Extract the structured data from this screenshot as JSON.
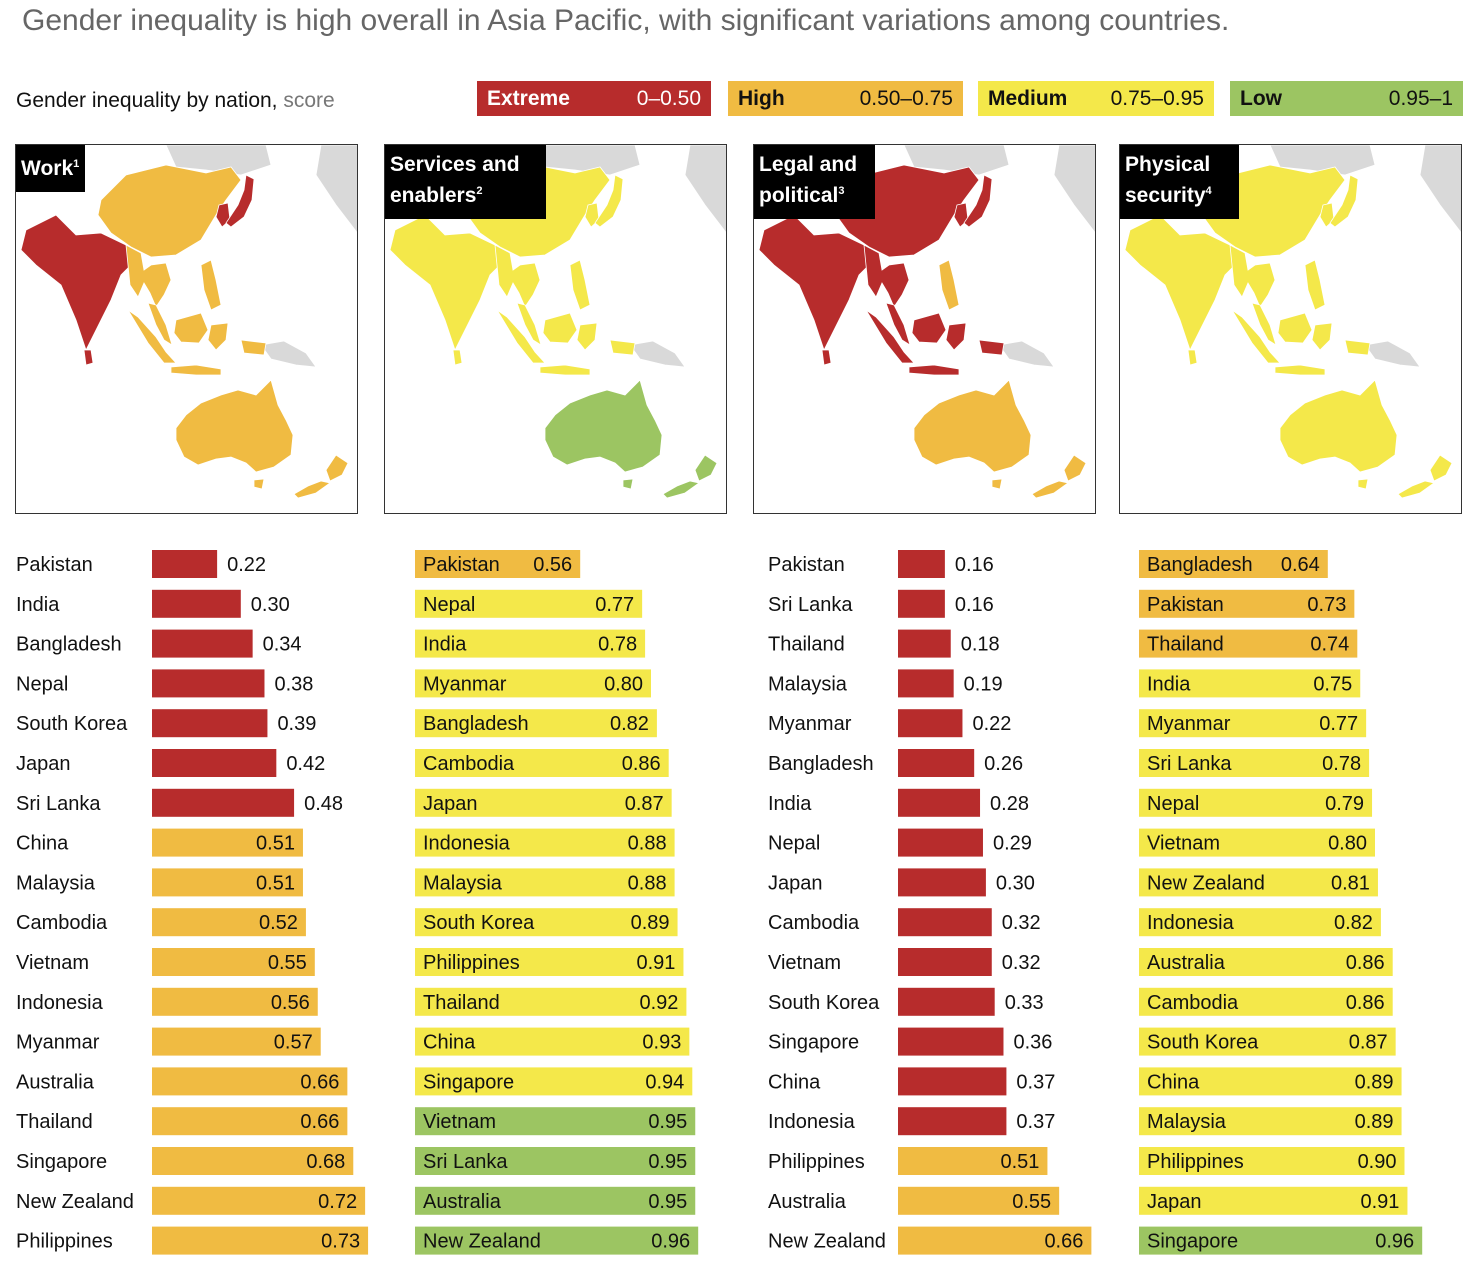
{
  "headline": "Gender inequality is high overall in Asia Pacific, with significant variations among countries.",
  "subtitle": {
    "label": "Gender inequality by nation,",
    "unit": "score"
  },
  "legend": [
    {
      "name": "Extreme",
      "range": "0–0.50",
      "color": "#b72c2c",
      "text_color": "#ffffff"
    },
    {
      "name": "High",
      "range": "0.50–0.75",
      "color": "#f0bb42",
      "text_color": "#111111"
    },
    {
      "name": "Medium",
      "range": "0.75–0.95",
      "color": "#f4e84a",
      "text_color": "#111111"
    },
    {
      "name": "Low",
      "range": "0.95–1",
      "color": "#9cc562",
      "text_color": "#111111"
    }
  ],
  "chart_data": [
    {
      "type": "bar",
      "orientation": "horizontal",
      "title": "Work",
      "footnote": "1",
      "categories": [
        "Pakistan",
        "India",
        "Bangladesh",
        "Nepal",
        "South Korea",
        "Japan",
        "Sri Lanka",
        "China",
        "Malaysia",
        "Cambodia",
        "Vietnam",
        "Indonesia",
        "Myanmar",
        "Australia",
        "Thailand",
        "Singapore",
        "New Zealand",
        "Philippines"
      ],
      "values": [
        0.22,
        0.3,
        0.34,
        0.38,
        0.39,
        0.42,
        0.48,
        0.51,
        0.51,
        0.52,
        0.55,
        0.56,
        0.57,
        0.66,
        0.66,
        0.68,
        0.72,
        0.73
      ],
      "labels": [
        "0.22",
        "0.30",
        "0.34",
        "0.38",
        "0.39",
        "0.42",
        "0.48",
        "0.51",
        "0.51",
        "0.52",
        "0.55",
        "0.56",
        "0.57",
        "0.66",
        "0.66",
        "0.68",
        "0.72",
        "0.73"
      ],
      "map_fills": {
        "south_asia": "#b72c2c",
        "china": "#f0bb42",
        "japan_korea": "#b72c2c",
        "mainland_sea": "#f0bb42",
        "maritime_sea": "#f0bb42",
        "philippines": "#f0bb42",
        "australia": "#f0bb42",
        "new_zealand": "#f0bb42"
      }
    },
    {
      "type": "bar",
      "orientation": "horizontal",
      "title": "Services and enablers",
      "footnote": "2",
      "categories": [
        "Pakistan",
        "Nepal",
        "India",
        "Myanmar",
        "Bangladesh",
        "Cambodia",
        "Japan",
        "Indonesia",
        "Malaysia",
        "South Korea",
        "Philippines",
        "Thailand",
        "China",
        "Singapore",
        "Vietnam",
        "Sri Lanka",
        "Australia",
        "New Zealand"
      ],
      "values": [
        0.56,
        0.77,
        0.78,
        0.8,
        0.82,
        0.86,
        0.87,
        0.88,
        0.88,
        0.89,
        0.91,
        0.92,
        0.93,
        0.94,
        0.95,
        0.95,
        0.95,
        0.96
      ],
      "labels": [
        "0.56",
        "0.77",
        "0.78",
        "0.80",
        "0.82",
        "0.86",
        "0.87",
        "0.88",
        "0.88",
        "0.89",
        "0.91",
        "0.92",
        "0.93",
        "0.94",
        "0.95",
        "0.95",
        "0.95",
        "0.96"
      ],
      "map_fills": {
        "south_asia": "#f4e84a",
        "china": "#f4e84a",
        "japan_korea": "#f4e84a",
        "mainland_sea": "#f4e84a",
        "maritime_sea": "#f4e84a",
        "philippines": "#f4e84a",
        "australia": "#9cc562",
        "new_zealand": "#9cc562"
      }
    },
    {
      "type": "bar",
      "orientation": "horizontal",
      "title": "Legal and political",
      "footnote": "3",
      "categories": [
        "Pakistan",
        "Sri Lanka",
        "Thailand",
        "Malaysia",
        "Myanmar",
        "Bangladesh",
        "India",
        "Nepal",
        "Japan",
        "Cambodia",
        "Vietnam",
        "South Korea",
        "Singapore",
        "China",
        "Indonesia",
        "Philippines",
        "Australia",
        "New Zealand"
      ],
      "values": [
        0.16,
        0.16,
        0.18,
        0.19,
        0.22,
        0.26,
        0.28,
        0.29,
        0.3,
        0.32,
        0.32,
        0.33,
        0.36,
        0.37,
        0.37,
        0.51,
        0.55,
        0.66
      ],
      "labels": [
        "0.16",
        "0.16",
        "0.18",
        "0.19",
        "0.22",
        "0.26",
        "0.28",
        "0.29",
        "0.30",
        "0.32",
        "0.32",
        "0.33",
        "0.36",
        "0.37",
        "0.37",
        "0.51",
        "0.55",
        "0.66"
      ],
      "map_fills": {
        "south_asia": "#b72c2c",
        "china": "#b72c2c",
        "japan_korea": "#b72c2c",
        "mainland_sea": "#b72c2c",
        "maritime_sea": "#b72c2c",
        "philippines": "#f0bb42",
        "australia": "#f0bb42",
        "new_zealand": "#f0bb42"
      }
    },
    {
      "type": "bar",
      "orientation": "horizontal",
      "title": "Physical security",
      "footnote": "4",
      "categories": [
        "Bangladesh",
        "Pakistan",
        "Thailand",
        "India",
        "Myanmar",
        "Sri Lanka",
        "Nepal",
        "Vietnam",
        "New Zealand",
        "Indonesia",
        "Australia",
        "Cambodia",
        "South Korea",
        "China",
        "Malaysia",
        "Philippines",
        "Japan",
        "Singapore"
      ],
      "values": [
        0.64,
        0.73,
        0.74,
        0.75,
        0.77,
        0.78,
        0.79,
        0.8,
        0.81,
        0.82,
        0.86,
        0.86,
        0.87,
        0.89,
        0.89,
        0.9,
        0.91,
        0.96
      ],
      "labels": [
        "0.64",
        "0.73",
        "0.74",
        "0.75",
        "0.77",
        "0.78",
        "0.79",
        "0.80",
        "0.81",
        "0.82",
        "0.86",
        "0.86",
        "0.87",
        "0.89",
        "0.89",
        "0.90",
        "0.91",
        "0.96"
      ],
      "map_fills": {
        "south_asia": "#f4e84a",
        "china": "#f4e84a",
        "japan_korea": "#f4e84a",
        "mainland_sea": "#f4e84a",
        "maritime_sea": "#f4e84a",
        "philippines": "#f4e84a",
        "australia": "#f4e84a",
        "new_zealand": "#f4e84a"
      }
    }
  ]
}
